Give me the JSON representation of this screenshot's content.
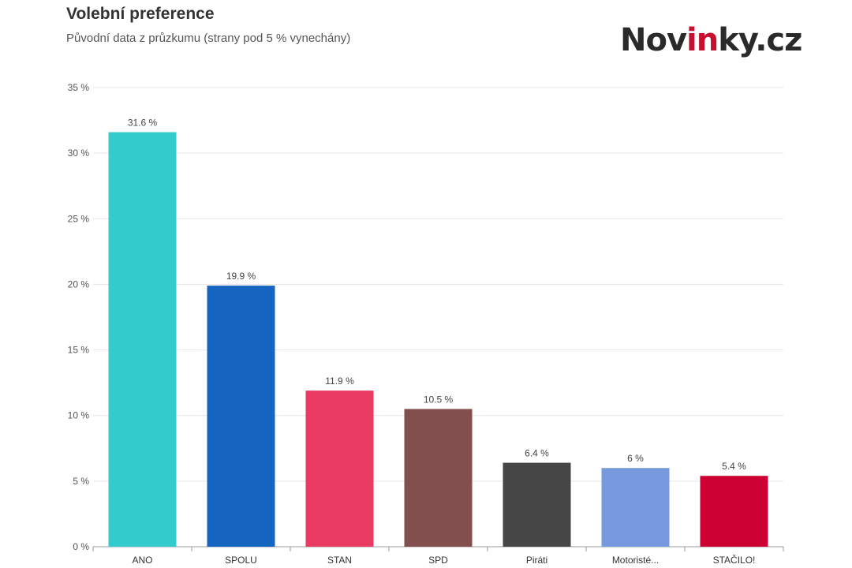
{
  "header": {
    "title": "Volební preference",
    "subtitle": "Původní data z průzkumu (strany pod 5 % vynechány)"
  },
  "logo": {
    "part1": "Nov",
    "part2": "in",
    "part3": "ky.cz",
    "accent_color": "#c8102e"
  },
  "chart_data": {
    "type": "bar",
    "title": "Volební preference",
    "subtitle": "Původní data z průzkumu (strany pod 5 % vynechány)",
    "xlabel": "",
    "ylabel": "",
    "ylim": [
      0,
      35
    ],
    "yticks": [
      0,
      5,
      10,
      15,
      20,
      25,
      30,
      35
    ],
    "ytick_labels": [
      "0 %",
      "5 %",
      "10 %",
      "15 %",
      "20 %",
      "25 %",
      "30 %",
      "35 %"
    ],
    "grid": true,
    "categories": [
      "ANO",
      "SPOLU",
      "STAN",
      "SPD",
      "Piráti",
      "Motoristé...",
      "STAČILO!"
    ],
    "values": [
      31.6,
      19.9,
      11.9,
      10.5,
      6.4,
      6,
      5.4
    ],
    "value_labels": [
      "31.6 %",
      "19.9 %",
      "11.9 %",
      "10.5 %",
      "6.4 %",
      "6 %",
      "5.4 %"
    ],
    "colors": [
      "#33cccc",
      "#1565c0",
      "#e83a63",
      "#824e4e",
      "#464646",
      "#7799dd",
      "#cc0033"
    ]
  }
}
